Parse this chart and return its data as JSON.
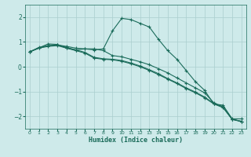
{
  "background_color": "#ceeaea",
  "grid_color": "#aacece",
  "line_color": "#1a6b5a",
  "xlabel": "Humidex (Indice chaleur)",
  "xlim": [
    -0.5,
    23.5
  ],
  "ylim": [
    -2.5,
    2.5
  ],
  "yticks": [
    -2,
    -1,
    0,
    1,
    2
  ],
  "xticks": [
    0,
    1,
    2,
    3,
    4,
    5,
    6,
    7,
    8,
    9,
    10,
    11,
    12,
    13,
    14,
    15,
    16,
    17,
    18,
    19,
    20,
    21,
    22,
    23
  ],
  "series": [
    {
      "x": [
        0,
        1,
        2,
        3,
        4,
        5,
        6,
        7,
        8,
        9,
        10,
        11,
        12,
        13,
        14,
        15,
        16,
        17,
        18,
        19,
        20,
        21,
        22,
        23
      ],
      "y": [
        0.6,
        0.78,
        0.85,
        0.88,
        0.82,
        0.75,
        0.72,
        0.68,
        0.72,
        1.45,
        1.95,
        1.9,
        1.75,
        1.6,
        1.1,
        0.65,
        0.3,
        -0.15,
        -0.6,
        -0.95,
        -1.5,
        -1.55,
        -2.1,
        -2.1
      ]
    },
    {
      "x": [
        0,
        2,
        3,
        4,
        5,
        6,
        7,
        8,
        9,
        10,
        11,
        12,
        13,
        14,
        15,
        16,
        17,
        18,
        19,
        20,
        21,
        22,
        23
      ],
      "y": [
        0.6,
        0.92,
        0.9,
        0.75,
        0.68,
        0.72,
        0.72,
        0.65,
        0.45,
        0.4,
        0.3,
        0.2,
        0.08,
        -0.08,
        -0.25,
        -0.45,
        -0.65,
        -0.85,
        -1.05,
        -1.45,
        -1.62,
        -2.12,
        -2.2
      ]
    },
    {
      "x": [
        0,
        1,
        2,
        3,
        4,
        5,
        6,
        7,
        8,
        9,
        10,
        11,
        12,
        13,
        14,
        15,
        16,
        17,
        18,
        19,
        20,
        21,
        22,
        23
      ],
      "y": [
        0.6,
        0.75,
        0.82,
        0.85,
        0.75,
        0.65,
        0.55,
        0.35,
        0.3,
        0.28,
        0.22,
        0.12,
        0.0,
        -0.15,
        -0.32,
        -0.5,
        -0.68,
        -0.88,
        -1.05,
        -1.25,
        -1.5,
        -1.65,
        -2.12,
        -2.22
      ]
    },
    {
      "x": [
        0,
        1,
        2,
        3,
        4,
        5,
        6,
        7,
        8,
        9,
        10,
        11,
        12,
        13,
        14,
        15,
        16,
        17,
        18,
        19,
        20,
        21,
        22,
        23
      ],
      "y": [
        0.6,
        0.75,
        0.85,
        0.88,
        0.78,
        0.68,
        0.58,
        0.38,
        0.32,
        0.3,
        0.25,
        0.15,
        0.03,
        -0.12,
        -0.28,
        -0.48,
        -0.65,
        -0.85,
        -1.02,
        -1.22,
        -1.48,
        -1.62,
        -2.12,
        -2.2
      ]
    }
  ]
}
